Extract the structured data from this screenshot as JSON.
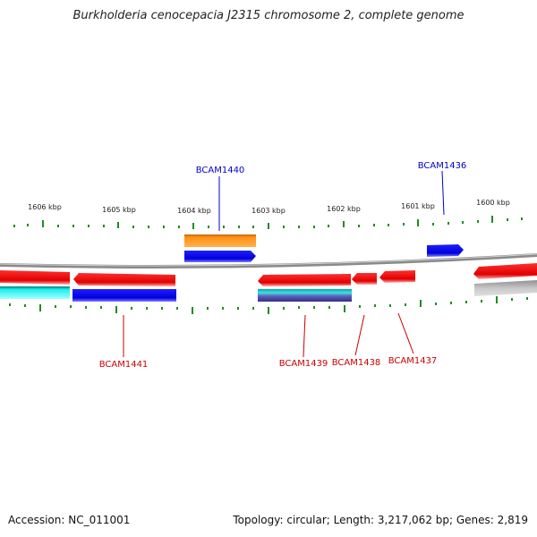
{
  "title": "Burkholderia cenocepacia J2315 chromosome 2, complete genome",
  "footer": {
    "accession": "Accession: NC_011001",
    "stats": "Topology: circular; Length: 3,217,062 bp; Genes: 2,819"
  },
  "scale": {
    "ticks": [
      {
        "label": "1606 kbp"
      },
      {
        "label": "1605 kbp"
      },
      {
        "label": "1604 kbp"
      },
      {
        "label": "1603 kbp"
      },
      {
        "label": "1602 kbp"
      },
      {
        "label": "1601 kbp"
      },
      {
        "label": "1600 kbp"
      }
    ]
  },
  "genes": {
    "BCAM1440": "BCAM1440",
    "BCAM1436": "BCAM1436",
    "BCAM1441": "BCAM1441",
    "BCAM1439": "BCAM1439",
    "BCAM1438": "BCAM1438",
    "BCAM1437": "BCAM1437"
  },
  "colors": {
    "forward_cds": "#0000ee",
    "reverse_cds": "#ee0000",
    "orange_feature": "#ff8c00",
    "cyan_feature": "#00dddd",
    "backbone": "#888888",
    "tick": "#228b22",
    "label_forward": "#0000cc",
    "label_reverse": "#cc0000"
  }
}
